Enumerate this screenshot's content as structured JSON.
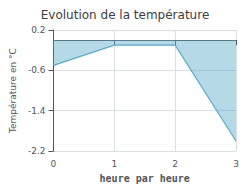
{
  "chart_data": {
    "type": "line",
    "title": "Evolution de la température",
    "xlabel": "heure par heure",
    "ylabel": "Température en °C",
    "x": [
      0,
      1,
      2,
      3
    ],
    "values": [
      -0.5,
      -0.1,
      -0.1,
      -2.0
    ],
    "color": "#5aaac8",
    "xlim": [
      0,
      3
    ],
    "ylim": [
      -2.2,
      0.2
    ],
    "xticks": [
      0,
      1,
      2,
      3
    ],
    "yticks": [
      0.2,
      -0.6,
      -1.4,
      -2.2
    ],
    "grid": true
  }
}
